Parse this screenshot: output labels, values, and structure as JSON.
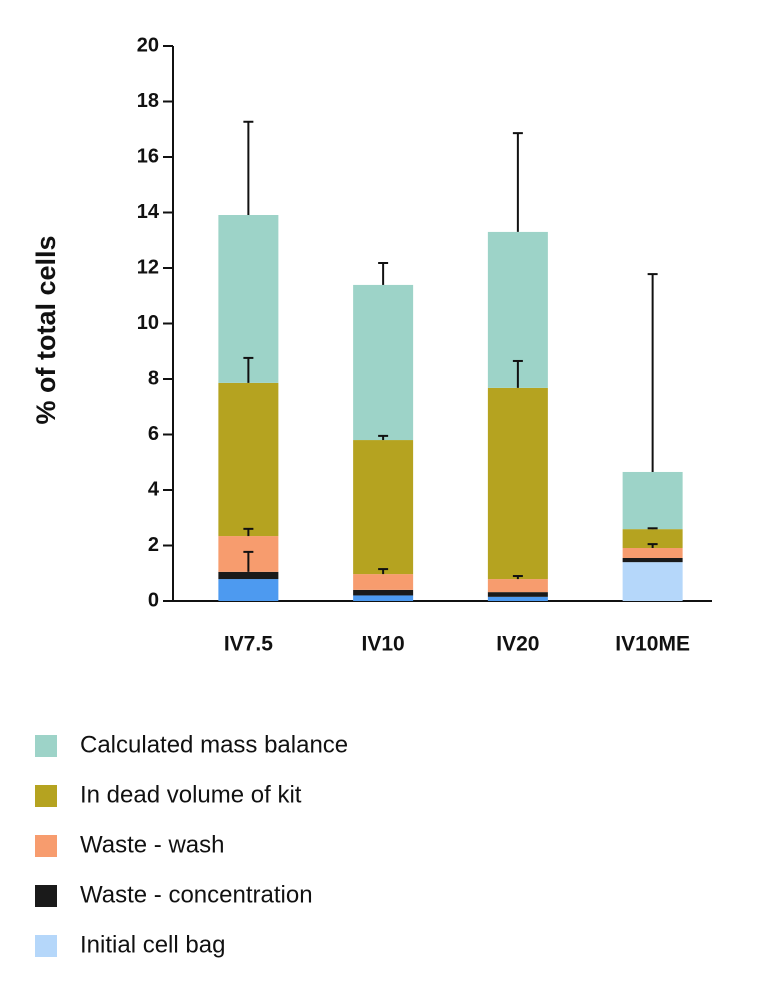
{
  "chart_data": {
    "type": "stacked-bar",
    "y_label": "% of total cells",
    "categories": [
      "IV7.5",
      "IV10",
      "IV20",
      "IV10ME"
    ],
    "series": [
      {
        "name": "Initial cell bag",
        "color": "#b5d7fa",
        "colors": [
          "#4d9af0",
          "#4d9af0",
          "#4d9af0",
          "#b5d7fa"
        ],
        "values": [
          0.79,
          0.2,
          0.15,
          1.4
        ],
        "errors": [
          null,
          null,
          null,
          null
        ]
      },
      {
        "name": "Waste - concentration",
        "color": "#1a1a1a",
        "values": [
          0.26,
          0.2,
          0.17,
          0.15
        ],
        "errors": [
          0.72,
          null,
          null,
          null
        ]
      },
      {
        "name": "Waste - wash",
        "color": "#f79c6e",
        "values": [
          1.29,
          0.57,
          0.47,
          0.36
        ],
        "errors": [
          0.26,
          0.18,
          0.11,
          0.14
        ]
      },
      {
        "name": "In dead volume of kit",
        "color": "#b5a320",
        "values": [
          5.52,
          4.83,
          6.89,
          0.68
        ],
        "errors": [
          0.9,
          0.15,
          0.97,
          0.03
        ]
      },
      {
        "name": "Calculated mass balance",
        "color": "#9dd3c8",
        "values": [
          6.05,
          5.59,
          5.62,
          2.06
        ],
        "errors": [
          3.36,
          0.79,
          3.56,
          7.13
        ]
      }
    ],
    "ylim": [
      0,
      20
    ],
    "yticks": [
      0,
      2,
      4,
      6,
      8,
      10,
      12,
      14,
      16,
      18,
      20
    ]
  }
}
